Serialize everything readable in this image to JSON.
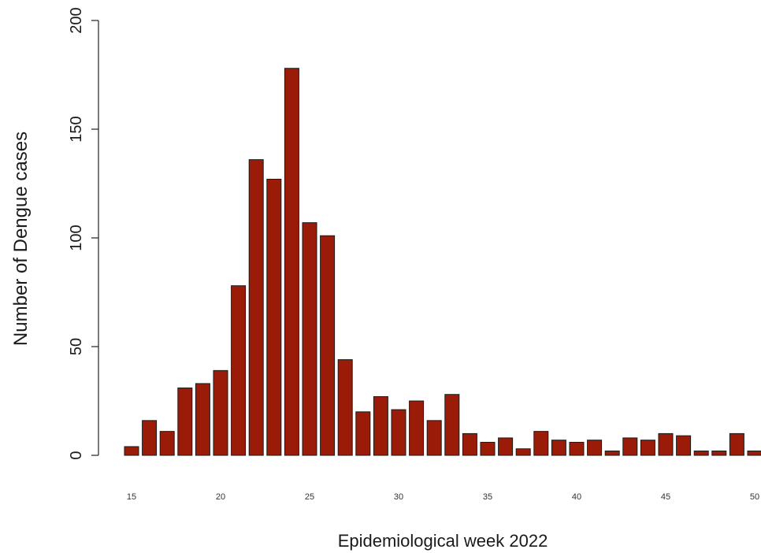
{
  "chart_data": {
    "type": "bar",
    "ylabel": "Number of Dengue cases",
    "xlabel": "Epidemiological week 2022",
    "ylim": [
      0,
      200
    ],
    "yticks": [
      0,
      50,
      100,
      150,
      200
    ],
    "xticks": [
      15,
      20,
      25,
      30,
      35,
      40,
      45,
      50
    ],
    "bar_color": "#9a1c08",
    "grid": false,
    "categories": [
      15,
      16,
      17,
      18,
      19,
      20,
      21,
      22,
      23,
      24,
      25,
      26,
      27,
      28,
      29,
      30,
      31,
      32,
      33,
      34,
      35,
      36,
      37,
      38,
      39,
      40,
      41,
      42,
      43,
      44,
      45,
      46,
      47,
      48,
      49,
      50
    ],
    "values": [
      4,
      16,
      11,
      31,
      33,
      39,
      78,
      136,
      127,
      178,
      107,
      101,
      44,
      20,
      27,
      21,
      25,
      16,
      28,
      10,
      6,
      8,
      3,
      11,
      7,
      6,
      7,
      2,
      8,
      7,
      10,
      9,
      2,
      2,
      10,
      2
    ]
  }
}
